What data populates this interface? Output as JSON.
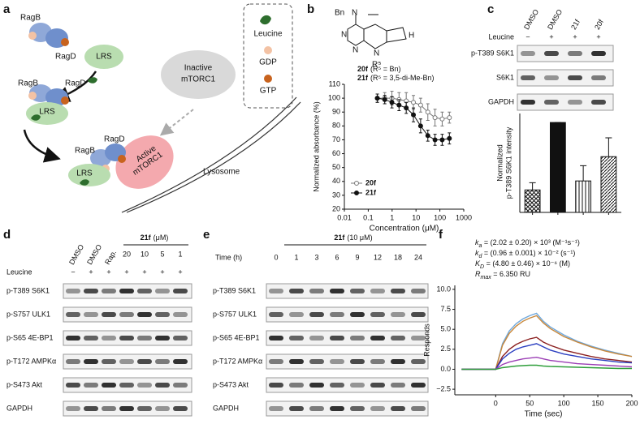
{
  "panel_labels": [
    "a",
    "b",
    "c",
    "d",
    "e",
    "f"
  ],
  "panel_a": {
    "labels": [
      "RagB",
      "RagD",
      "LRS",
      "Inactive",
      "mTORC1",
      "Leucine",
      "GDP",
      "GTP",
      "RagB",
      "RagD",
      "LRS",
      "RagB",
      "RagD",
      "Active",
      "mTORC1",
      "LRS",
      "Lysosome"
    ]
  },
  "panel_b": {
    "structure": [
      "Bn",
      "N",
      "N",
      "N",
      "N",
      "H",
      "R⁵"
    ],
    "compounds": [
      {
        "name": "20f",
        "desc": "(R⁵ = Bn)"
      },
      {
        "name": "21f",
        "desc": "(R⁵ = 3,5-di-Me-Bn)"
      }
    ]
  },
  "panel_c": {
    "lanes": [
      "DMSO",
      "DMSO",
      "21f",
      "20f"
    ],
    "leucine_label": "Leucine",
    "leucine": [
      "−",
      "+",
      "+",
      "+"
    ],
    "rows": [
      "p-T389 S6K1",
      "S6K1",
      "GAPDH"
    ]
  },
  "panel_d": {
    "lanes": [
      "DMSO",
      "DMSO",
      "Rap."
    ],
    "treatment": "21f",
    "treatment_unit": "(μM)",
    "doses": [
      "20",
      "10",
      "5",
      "1"
    ],
    "leucine_label": "Leucine",
    "leucine": [
      "−",
      "+",
      "+",
      "+",
      "+",
      "+",
      "+"
    ],
    "rows": [
      "p-T389 S6K1",
      "p-S757 ULK1",
      "p-S65 4E-BP1",
      "p-T172 AMPKα",
      "p-S473 Akt",
      "GAPDH"
    ]
  },
  "panel_e": {
    "treatment": "21f",
    "treatment_unit": "(10 μM)",
    "time_label": "Time (h)",
    "times": [
      "0",
      "1",
      "3",
      "6",
      "9",
      "12",
      "18",
      "24"
    ],
    "rows": [
      "p-T389 S6K1",
      "p-S757 ULK1",
      "p-S65 4E-BP1",
      "p-T172 AMPKα",
      "p-S473 Akt",
      "GAPDH"
    ]
  },
  "chart_data": [
    {
      "type": "line",
      "xlabel": "Concentration (μM)",
      "ylabel": "Normalized absorbance (%)",
      "xscale": "log",
      "xlim": [
        0.01,
        1000
      ],
      "xticks": [
        0.01,
        0.1,
        1,
        10,
        100,
        1000
      ],
      "ylim": [
        20,
        110
      ],
      "yticks": [
        20,
        30,
        40,
        50,
        60,
        70,
        80,
        90,
        100,
        110
      ],
      "legend": "lower-left",
      "x": [
        0.24,
        0.49,
        0.98,
        1.95,
        3.9,
        7.8,
        15.6,
        31.3,
        62.5,
        125,
        250
      ],
      "series": [
        {
          "name": "20f",
          "color": "#777777",
          "marker": "open",
          "values": [
            100,
            100,
            100,
            99,
            98,
            97,
            95,
            90,
            86,
            85,
            86
          ],
          "errors": [
            3,
            4,
            5,
            5,
            6,
            5,
            5,
            6,
            6,
            5,
            4
          ]
        },
        {
          "name": "21f",
          "color": "#111111",
          "marker": "filled",
          "values": [
            100,
            99,
            97,
            95,
            93,
            88,
            80,
            73,
            70,
            70,
            71
          ],
          "errors": [
            3,
            3,
            4,
            4,
            4,
            5,
            5,
            4,
            4,
            4,
            4
          ]
        }
      ]
    },
    {
      "type": "bar",
      "ylabel": [
        "Normalized",
        "p-T389 S6K1 intensity"
      ],
      "categories": [
        null,
        null,
        null,
        null
      ],
      "values": [
        0.25,
        1.0,
        0.35,
        0.62
      ],
      "errors": [
        0.08,
        0,
        0.17,
        0.21
      ],
      "fills": [
        "crosshatch",
        "solid",
        "vertical",
        "diagonal"
      ],
      "ylim": [
        0,
        1.1
      ]
    },
    {
      "type": "line",
      "xlabel": "Time (sec)",
      "ylabel": "Responds",
      "annotations": [
        {
          "symbol": "k",
          "sub": "a",
          "text": " = (2.02 ± 0.20) × 10³ (M⁻¹s⁻¹)"
        },
        {
          "symbol": "k",
          "sub": "d",
          "text": " = (0.96 ± 0.001) × 10⁻² (s⁻¹)"
        },
        {
          "symbol": "K",
          "sub": "D",
          "text": " = (4.80 ± 0.46) × 10⁻⁶ (M)"
        },
        {
          "symbol": "R",
          "sub": "max",
          "text": " = 6.350 RU"
        }
      ],
      "xlim": [
        -60,
        200
      ],
      "xticks": [
        0,
        50,
        100,
        150,
        200
      ],
      "ylim": [
        -3.2,
        10.5
      ],
      "yticks": [
        {
          "value": -2.5,
          "label": "−2.5"
        },
        {
          "value": 0,
          "label": "0.0"
        },
        {
          "value": 2.5,
          "label": "2.5"
        },
        {
          "value": 5,
          "label": "5.0"
        },
        {
          "value": 7.5,
          "label": "7.5"
        },
        {
          "value": 10,
          "label": "10.0"
        }
      ],
      "x": [
        -50,
        -25,
        0,
        10,
        20,
        30,
        40,
        50,
        60,
        70,
        80,
        100,
        120,
        140,
        160,
        180,
        200
      ],
      "series": [
        {
          "color": "#6fa8dc",
          "values": [
            0,
            0,
            0,
            3.2,
            4.8,
            5.7,
            6.3,
            6.7,
            7.0,
            6.0,
            5.3,
            4.3,
            3.5,
            2.9,
            2.4,
            2.0,
            1.6
          ]
        },
        {
          "color": "#c8873a",
          "values": [
            0,
            0,
            0,
            3.0,
            4.5,
            5.4,
            6.0,
            6.4,
            6.7,
            5.8,
            5.1,
            4.1,
            3.4,
            2.8,
            2.3,
            1.9,
            1.6
          ]
        },
        {
          "color": "#8b2020",
          "values": [
            0,
            0,
            0,
            1.6,
            2.5,
            3.1,
            3.5,
            3.8,
            4.0,
            3.4,
            3.0,
            2.4,
            2.0,
            1.6,
            1.3,
            1.1,
            0.9
          ]
        },
        {
          "color": "#2b3fc0",
          "values": [
            0,
            0,
            0,
            1.3,
            2.0,
            2.5,
            2.8,
            3.0,
            3.2,
            2.8,
            2.4,
            1.9,
            1.6,
            1.3,
            1.1,
            0.9,
            0.8
          ]
        },
        {
          "color": "#9b3fb5",
          "values": [
            0,
            0,
            0,
            0.6,
            0.9,
            1.1,
            1.3,
            1.4,
            1.5,
            1.3,
            1.1,
            0.9,
            0.7,
            0.6,
            0.5,
            0.4,
            0.3
          ]
        },
        {
          "color": "#2e9e3a",
          "values": [
            0,
            0,
            0,
            0.2,
            0.3,
            0.4,
            0.45,
            0.5,
            0.5,
            0.4,
            0.35,
            0.3,
            0.25,
            0.2,
            0.15,
            0.1,
            0.1
          ]
        }
      ]
    }
  ]
}
